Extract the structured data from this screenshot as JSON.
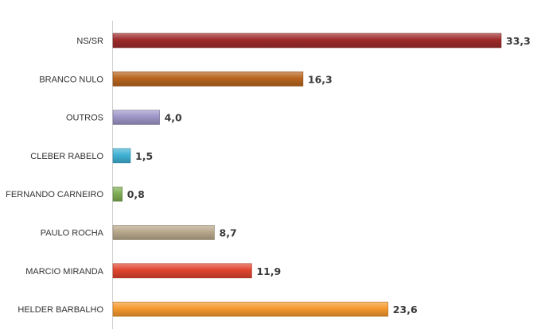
{
  "chart_data": {
    "type": "bar",
    "orientation": "horizontal",
    "categories": [
      "NS/SR",
      "BRANCO NULO",
      "OUTROS",
      "CLEBER RABELO",
      "FERNANDO CARNEIRO",
      "PAULO ROCHA",
      "MARCIO MIRANDA",
      "HELDER BARBALHO"
    ],
    "values": [
      33.3,
      16.3,
      4.0,
      1.5,
      0.8,
      8.7,
      11.9,
      23.6
    ],
    "value_labels": [
      "33,3",
      "16,3",
      "4,0",
      "1,5",
      "0,8",
      "8,7",
      "11,9",
      "23,6"
    ],
    "colors": [
      "#9e2a2a",
      "#b8651f",
      "#9e96c8",
      "#3fb2d4",
      "#7fae55",
      "#b8a78c",
      "#e0452e",
      "#f5992e"
    ],
    "title": "",
    "xlabel": "",
    "ylabel": "",
    "xlim": [
      0,
      33.3
    ],
    "grid": false,
    "legend": "none"
  }
}
